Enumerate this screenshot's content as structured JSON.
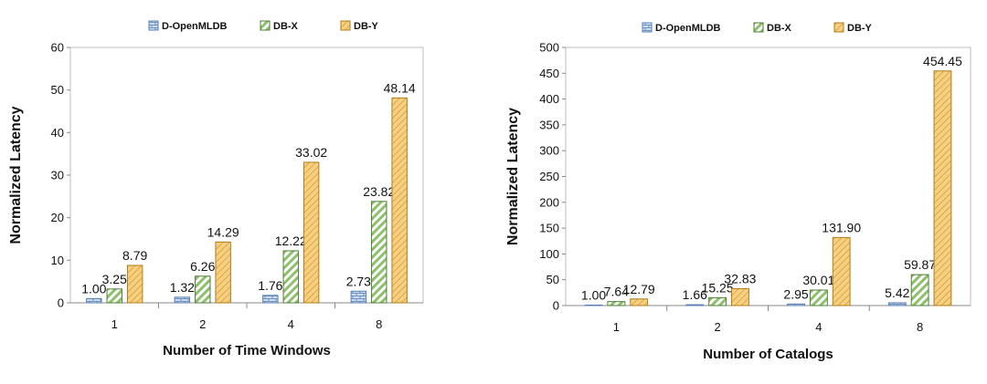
{
  "chart_data": [
    {
      "type": "bar",
      "title": "",
      "xlabel": "Number of Time Windows",
      "ylabel": "Normalized Latency",
      "categories": [
        "1",
        "2",
        "4",
        "8"
      ],
      "ylim": [
        0,
        60
      ],
      "yticks": [
        0,
        10,
        20,
        30,
        40,
        50,
        60
      ],
      "legend_position": "top",
      "series": [
        {
          "name": "D-OpenMLDB",
          "values": [
            1.0,
            1.32,
            1.76,
            2.73
          ],
          "labels": [
            "1.00",
            "1.32",
            "1.76",
            "2.73"
          ],
          "pattern": "bricks",
          "color": "#8fb4e3",
          "stroke": "#5b7fb0"
        },
        {
          "name": "DB-X",
          "values": [
            3.25,
            6.26,
            12.22,
            23.82
          ],
          "labels": [
            "3.25",
            "6.26",
            "12.22",
            "23.82"
          ],
          "pattern": "diag",
          "color": "#a9d18e",
          "stroke": "#4f7d34"
        },
        {
          "name": "DB-Y",
          "values": [
            8.79,
            14.29,
            33.02,
            48.14
          ],
          "labels": [
            "8.79",
            "14.29",
            "33.02",
            "48.14"
          ],
          "pattern": "hatch",
          "color": "#f4c26b",
          "stroke": "#b07c1a"
        }
      ]
    },
    {
      "type": "bar",
      "title": "",
      "xlabel": "Number of Catalogs",
      "ylabel": "Normalized Latency",
      "categories": [
        "1",
        "2",
        "4",
        "8"
      ],
      "ylim": [
        0,
        500
      ],
      "yticks": [
        0,
        50,
        100,
        150,
        200,
        250,
        300,
        350,
        400,
        450,
        500
      ],
      "legend_position": "top",
      "series": [
        {
          "name": "D-OpenMLDB",
          "values": [
            1.0,
            1.66,
            2.95,
            5.42
          ],
          "labels": [
            "1.00",
            "1.66",
            "2.95",
            "5.42"
          ],
          "pattern": "bricks",
          "color": "#8fb4e3",
          "stroke": "#5b7fb0"
        },
        {
          "name": "DB-X",
          "values": [
            7.64,
            15.25,
            30.01,
            59.87
          ],
          "labels": [
            "7.64",
            "15.25",
            "30.01",
            "59.87"
          ],
          "pattern": "diag",
          "color": "#a9d18e",
          "stroke": "#4f7d34"
        },
        {
          "name": "DB-Y",
          "values": [
            12.79,
            32.83,
            131.9,
            454.45
          ],
          "labels": [
            "12.79",
            "32.83",
            "131.90",
            "454.45"
          ],
          "pattern": "hatch",
          "color": "#f4c26b",
          "stroke": "#b07c1a"
        }
      ]
    }
  ]
}
